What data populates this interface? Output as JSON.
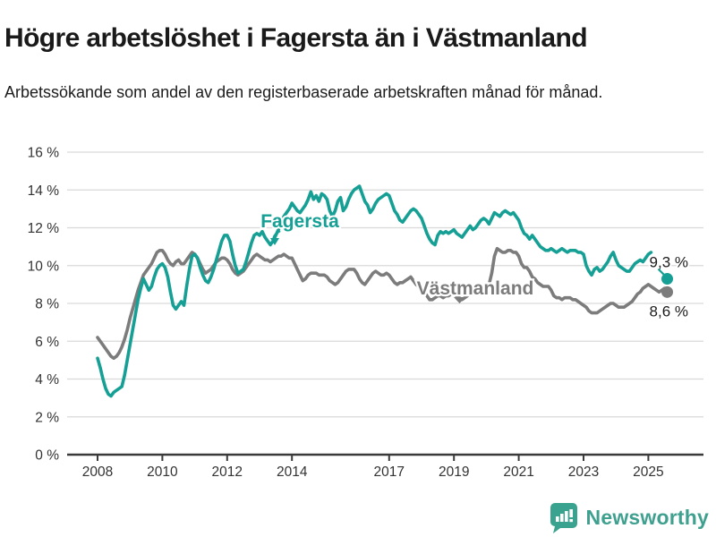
{
  "title": "Högre arbetslöshet i Fagersta än i Västmanland",
  "subtitle": "Arbetssökande som andel av den registerbaserade arbetskraften månad för månad.",
  "footer": {
    "brand": "Newsworthy",
    "brand_color": "#3fa08f"
  },
  "chart_data": {
    "type": "line",
    "unit": "%",
    "start_year": 2008,
    "months_per_point": 1,
    "ylim": [
      0,
      16
    ],
    "y_tick_step": 2,
    "y_tick_labels": [
      "0 %",
      "2 %",
      "4 %",
      "6 %",
      "8 %",
      "10 %",
      "12 %",
      "14 %",
      "16 %"
    ],
    "x_tick_years": [
      2008,
      2010,
      2012,
      2014,
      2017,
      2019,
      2021,
      2023,
      2025
    ],
    "x_tick_labels": [
      "2008",
      "2010",
      "2012",
      "2014",
      "2017",
      "2019",
      "2021",
      "2023",
      "2025"
    ],
    "grid": true,
    "axis_color": "#3a3a3a",
    "grid_color": "#d9d9d9",
    "series": [
      {
        "name": "Västmanland",
        "color": "#7c7c7c",
        "end_label": "8,6 %",
        "values": [
          6.2,
          6.0,
          5.8,
          5.6,
          5.4,
          5.2,
          5.1,
          5.2,
          5.4,
          5.7,
          6.1,
          6.6,
          7.2,
          7.7,
          8.2,
          8.7,
          9.1,
          9.5,
          9.7,
          9.9,
          10.1,
          10.4,
          10.7,
          10.8,
          10.8,
          10.6,
          10.3,
          10.1,
          10.0,
          10.2,
          10.3,
          10.1,
          10.1,
          10.3,
          10.5,
          10.7,
          10.6,
          10.4,
          10.1,
          9.8,
          9.6,
          9.7,
          9.8,
          10.0,
          10.2,
          10.3,
          10.4,
          10.4,
          10.3,
          10.1,
          9.8,
          9.6,
          9.5,
          9.6,
          9.7,
          9.9,
          10.1,
          10.3,
          10.5,
          10.6,
          10.5,
          10.4,
          10.3,
          10.3,
          10.2,
          10.3,
          10.4,
          10.5,
          10.5,
          10.6,
          10.5,
          10.4,
          10.4,
          10.1,
          9.8,
          9.5,
          9.2,
          9.3,
          9.5,
          9.6,
          9.6,
          9.6,
          9.5,
          9.5,
          9.5,
          9.4,
          9.2,
          9.1,
          9.0,
          9.1,
          9.3,
          9.5,
          9.7,
          9.8,
          9.8,
          9.8,
          9.6,
          9.3,
          9.1,
          9.0,
          9.2,
          9.4,
          9.6,
          9.7,
          9.6,
          9.5,
          9.5,
          9.6,
          9.5,
          9.3,
          9.1,
          9.0,
          9.1,
          9.1,
          9.2,
          9.3,
          9.4,
          9.2,
          9.0,
          8.9,
          8.8,
          8.6,
          8.4,
          8.2,
          8.2,
          8.3,
          8.4,
          8.4,
          8.3,
          8.4,
          8.4,
          8.5,
          8.5,
          8.4,
          8.3,
          8.2,
          8.3,
          8.4,
          8.6,
          8.5,
          8.5,
          8.6,
          8.7,
          8.8,
          8.9,
          9.0,
          9.6,
          10.5,
          10.9,
          10.8,
          10.7,
          10.7,
          10.8,
          10.8,
          10.7,
          10.7,
          10.5,
          10.1,
          9.9,
          9.9,
          9.7,
          9.4,
          9.3,
          9.1,
          9.0,
          8.9,
          8.9,
          8.9,
          8.7,
          8.4,
          8.3,
          8.3,
          8.2,
          8.3,
          8.3,
          8.3,
          8.2,
          8.2,
          8.1,
          8.0,
          7.9,
          7.8,
          7.6,
          7.5,
          7.5,
          7.5,
          7.6,
          7.7,
          7.8,
          7.9,
          8.0,
          8.0,
          7.9,
          7.8,
          7.8,
          7.8,
          7.9,
          8.0,
          8.1,
          8.3,
          8.5,
          8.6,
          8.8,
          8.9,
          9.0,
          8.9,
          8.8,
          8.7,
          8.6,
          8.7,
          8.8,
          8.6
        ]
      },
      {
        "name": "Fagersta",
        "color": "#16a095",
        "end_label": "9,3 %",
        "values": [
          5.1,
          4.6,
          4.0,
          3.5,
          3.2,
          3.1,
          3.3,
          3.4,
          3.5,
          3.6,
          4.2,
          5.0,
          5.8,
          6.6,
          7.4,
          8.2,
          8.8,
          9.3,
          9.0,
          8.7,
          8.9,
          9.4,
          9.8,
          10.0,
          10.1,
          9.9,
          9.4,
          8.6,
          7.9,
          7.7,
          7.9,
          8.1,
          7.9,
          8.9,
          9.8,
          10.5,
          10.6,
          10.4,
          9.9,
          9.5,
          9.2,
          9.1,
          9.4,
          9.8,
          10.3,
          10.8,
          11.3,
          11.6,
          11.6,
          11.3,
          10.6,
          10.0,
          9.6,
          9.7,
          9.8,
          10.2,
          10.7,
          11.2,
          11.6,
          11.7,
          11.6,
          11.8,
          11.5,
          11.3,
          11.1,
          11.3,
          11.6,
          11.9,
          12.2,
          12.6,
          12.8,
          13.0,
          13.3,
          13.1,
          12.9,
          12.8,
          13.0,
          13.2,
          13.5,
          13.9,
          13.5,
          13.7,
          13.4,
          13.8,
          13.7,
          13.5,
          12.9,
          12.6,
          12.9,
          13.4,
          13.6,
          12.9,
          13.1,
          13.5,
          13.8,
          14.0,
          14.1,
          14.2,
          13.8,
          13.4,
          13.2,
          12.8,
          13.0,
          13.3,
          13.5,
          13.6,
          13.7,
          13.8,
          13.7,
          13.3,
          12.9,
          12.7,
          12.4,
          12.3,
          12.5,
          12.7,
          12.9,
          13.0,
          12.9,
          12.7,
          12.5,
          12.1,
          11.7,
          11.4,
          11.2,
          11.1,
          11.6,
          11.8,
          11.7,
          11.8,
          11.7,
          11.8,
          11.9,
          11.7,
          11.6,
          11.5,
          11.7,
          11.9,
          12.1,
          11.9,
          12.0,
          12.2,
          12.4,
          12.5,
          12.4,
          12.2,
          12.5,
          12.8,
          12.7,
          12.6,
          12.8,
          12.9,
          12.8,
          12.7,
          12.8,
          12.6,
          12.4,
          12.0,
          11.7,
          11.6,
          11.4,
          11.6,
          11.4,
          11.2,
          11.0,
          10.9,
          10.8,
          10.8,
          10.9,
          10.8,
          10.7,
          10.8,
          10.9,
          10.8,
          10.7,
          10.8,
          10.8,
          10.8,
          10.7,
          10.7,
          10.6,
          10.0,
          9.7,
          9.5,
          9.8,
          9.9,
          9.7,
          9.8,
          10.0,
          10.2,
          10.5,
          10.7,
          10.3,
          10.0,
          9.9,
          9.8,
          9.7,
          9.7,
          9.9,
          10.1,
          10.2,
          10.3,
          10.2,
          10.4,
          10.6,
          10.7,
          10.5,
          10.2,
          9.9,
          9.6,
          9.4,
          9.3
        ]
      }
    ],
    "annotations": [
      {
        "text": "Fagersta",
        "series": "Fagersta"
      },
      {
        "text": "Västmanland",
        "series": "Västmanland"
      }
    ]
  }
}
